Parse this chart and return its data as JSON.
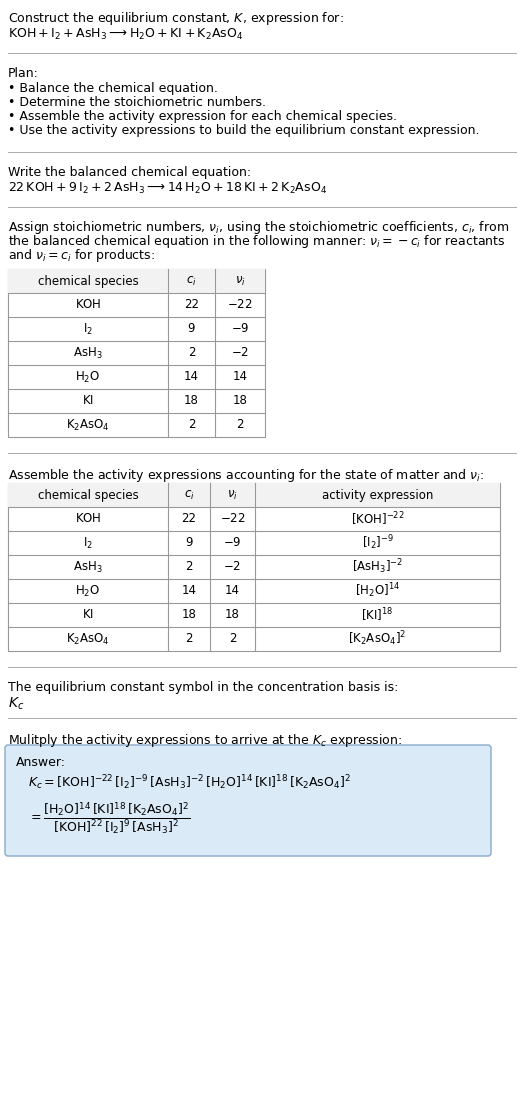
{
  "bg_color": "#ffffff",
  "text_color": "#000000",
  "title_line1": "Construct the equilibrium constant, $K$, expression for:",
  "title_line2": "$\\mathrm{KOH} + \\mathrm{I_2} + \\mathrm{AsH_3} \\longrightarrow \\mathrm{H_2O} + \\mathrm{KI} + \\mathrm{K_2AsO_4}$",
  "plan_header": "Plan:",
  "plan_bullets": [
    "• Balance the chemical equation.",
    "• Determine the stoichiometric numbers.",
    "• Assemble the activity expression for each chemical species.",
    "• Use the activity expressions to build the equilibrium constant expression."
  ],
  "balanced_header": "Write the balanced chemical equation:",
  "balanced_eq": "$22\\,\\mathrm{KOH} + 9\\,\\mathrm{I_2} + 2\\,\\mathrm{AsH_3} \\longrightarrow 14\\,\\mathrm{H_2O} + 18\\,\\mathrm{KI} + 2\\,\\mathrm{K_2AsO_4}$",
  "stoich_lines": [
    "Assign stoichiometric numbers, $\\nu_i$, using the stoichiometric coefficients, $c_i$, from",
    "the balanced chemical equation in the following manner: $\\nu_i = -c_i$ for reactants",
    "and $\\nu_i = c_i$ for products:"
  ],
  "table1_cols": [
    "chemical species",
    "$c_i$",
    "$\\nu_i$"
  ],
  "table1_data": [
    [
      "$\\mathrm{KOH}$",
      "22",
      "$-22$"
    ],
    [
      "$\\mathrm{I_2}$",
      "9",
      "$-9$"
    ],
    [
      "$\\mathrm{AsH_3}$",
      "2",
      "$-2$"
    ],
    [
      "$\\mathrm{H_2O}$",
      "14",
      "14"
    ],
    [
      "$\\mathrm{KI}$",
      "18",
      "18"
    ],
    [
      "$\\mathrm{K_2AsO_4}$",
      "2",
      "2"
    ]
  ],
  "activity_header": "Assemble the activity expressions accounting for the state of matter and $\\nu_i$:",
  "table2_cols": [
    "chemical species",
    "$c_i$",
    "$\\nu_i$",
    "activity expression"
  ],
  "table2_data": [
    [
      "$\\mathrm{KOH}$",
      "22",
      "$-22$",
      "$[\\mathrm{KOH}]^{-22}$"
    ],
    [
      "$\\mathrm{I_2}$",
      "9",
      "$-9$",
      "$[\\mathrm{I_2}]^{-9}$"
    ],
    [
      "$\\mathrm{AsH_3}$",
      "2",
      "$-2$",
      "$[\\mathrm{AsH_3}]^{-2}$"
    ],
    [
      "$\\mathrm{H_2O}$",
      "14",
      "14",
      "$[\\mathrm{H_2O}]^{14}$"
    ],
    [
      "$\\mathrm{KI}$",
      "18",
      "18",
      "$[\\mathrm{KI}]^{18}$"
    ],
    [
      "$\\mathrm{K_2AsO_4}$",
      "2",
      "2",
      "$[\\mathrm{K_2AsO_4}]^{2}$"
    ]
  ],
  "kc_header": "The equilibrium constant symbol in the concentration basis is:",
  "kc_symbol": "$K_c$",
  "multiply_header": "Mulitply the activity expressions to arrive at the $K_c$ expression:",
  "answer_label": "Answer:",
  "answer_line1": "$K_c = [\\mathrm{KOH}]^{-22}\\,[\\mathrm{I_2}]^{-9}\\,[\\mathrm{AsH_3}]^{-2}\\,[\\mathrm{H_2O}]^{14}\\,[\\mathrm{KI}]^{18}\\,[\\mathrm{K_2AsO_4}]^{2}$",
  "answer_line2": "$= \\dfrac{[\\mathrm{H_2O}]^{14}\\,[\\mathrm{KI}]^{18}\\,[\\mathrm{K_2AsO_4}]^{2}}{[\\mathrm{KOH}]^{22}\\,[\\mathrm{I_2}]^{9}\\,[\\mathrm{AsH_3}]^{2}}$",
  "answer_box_color": "#daeaf7",
  "answer_box_border": "#88aacc",
  "font_size": 9.0,
  "font_size_small": 8.5,
  "line_color": "#aaaaaa"
}
